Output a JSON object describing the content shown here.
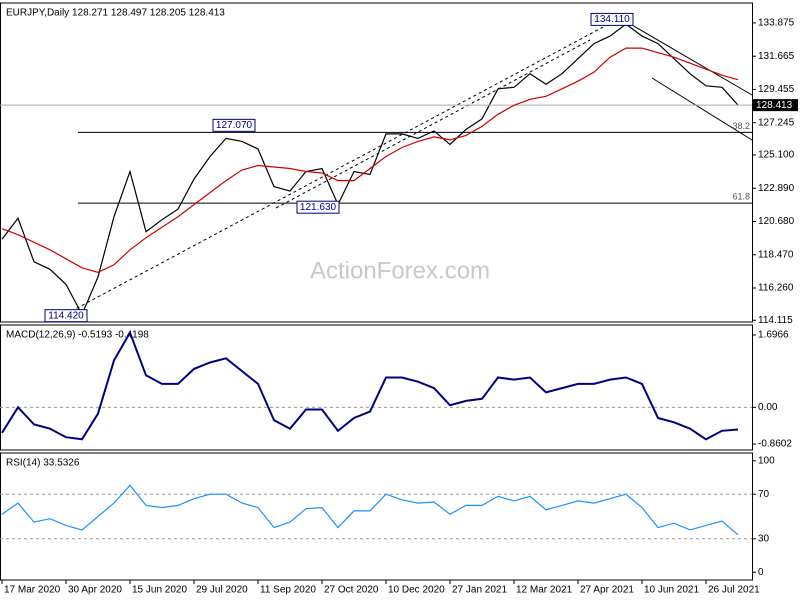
{
  "chart_data": [
    {
      "type": "line",
      "title": "EURJPY,Daily  128.271 128.497 128.205 128.413",
      "watermark": "ActionForex.com",
      "x": [
        0,
        8,
        16,
        24,
        32,
        40,
        48,
        56,
        64,
        72,
        80,
        88,
        96,
        104,
        112,
        120,
        128,
        136,
        144,
        152,
        160,
        168,
        176,
        184,
        192,
        200,
        208,
        216,
        224,
        232,
        240,
        248,
        256,
        264,
        272,
        280,
        288,
        296,
        304,
        312,
        320,
        328,
        336,
        344,
        352,
        360,
        368
      ],
      "series": [
        {
          "color": "#000000",
          "values": [
            119.5,
            120.9,
            118,
            117.5,
            116.5,
            114.5,
            117,
            121,
            124,
            120,
            120.8,
            121.5,
            123.5,
            125,
            126.2,
            126,
            125.5,
            123,
            122.7,
            124,
            124.2,
            121.8,
            124,
            123.8,
            126.5,
            126.5,
            126.2,
            126.7,
            125.8,
            126.8,
            127.5,
            129.5,
            129.6,
            130.5,
            129.8,
            130.5,
            131.5,
            132.5,
            133,
            133.8,
            133,
            132.5,
            131.5,
            130.5,
            129.7,
            129.6,
            128.413
          ]
        },
        {
          "color": "#d00000",
          "values": [
            120.2,
            119.8,
            119.3,
            118.8,
            118.2,
            117.6,
            117.3,
            117.8,
            118.8,
            119.6,
            120.3,
            121,
            121.8,
            122.6,
            123.4,
            124.1,
            124.4,
            124.3,
            124.2,
            124,
            123.9,
            123.4,
            123.4,
            124.2,
            125,
            125.6,
            126,
            126.3,
            126.1,
            126.4,
            127,
            127.8,
            128.4,
            128.8,
            129,
            129.5,
            130,
            130.6,
            131.6,
            132.2,
            132.2,
            131.9,
            131.6,
            131.2,
            130.8,
            130.4,
            130.1
          ]
        }
      ],
      "xlim": [
        -1,
        375
      ],
      "ylim": [
        114.0,
        135.2
      ],
      "yticks": [
        133.875,
        131.665,
        129.455,
        127.245,
        {
          "value": 125.1,
          "label": "125.100"
        },
        {
          "value": 122.89,
          "label": "122.890"
        },
        {
          "value": 120.68,
          "label": "120.680"
        },
        {
          "value": 118.47,
          "label": "118.470"
        },
        {
          "value": 116.26,
          "label": "116.260"
        },
        114.115
      ],
      "annotations": [
        {
          "label": "134.110",
          "value": 134.11,
          "x": 305
        },
        {
          "label": "127.070",
          "value": 127.07,
          "x": 116
        },
        {
          "label": "121.630",
          "value": 121.63,
          "x": 158
        },
        {
          "label": "114.420",
          "value": 114.42,
          "x": 32
        }
      ],
      "levels": [
        {
          "label": "38.2",
          "value": 126.6
        },
        {
          "label": "61.8",
          "value": 121.9
        }
      ]
    },
    {
      "type": "line",
      "title": "MACD(12,26,9) -0.5193 -0.4198",
      "x": [
        0,
        8,
        16,
        24,
        32,
        40,
        48,
        56,
        64,
        72,
        80,
        88,
        96,
        104,
        112,
        120,
        128,
        136,
        144,
        152,
        160,
        168,
        176,
        184,
        192,
        200,
        208,
        216,
        224,
        232,
        240,
        248,
        256,
        264,
        272,
        280,
        288,
        296,
        304,
        312,
        320,
        328,
        336,
        344,
        352,
        360,
        368
      ],
      "series": [
        {
          "color": "#000080",
          "values": [
            -0.6,
            0,
            -0.4,
            -0.5,
            -0.7,
            -0.75,
            -0.15,
            1.1,
            1.75,
            0.75,
            0.55,
            0.55,
            0.9,
            1.05,
            1.15,
            0.85,
            0.55,
            -0.3,
            -0.5,
            -0.05,
            -0.05,
            -0.55,
            -0.25,
            -0.1,
            0.7,
            0.7,
            0.6,
            0.45,
            0.05,
            0.15,
            0.2,
            0.7,
            0.65,
            0.7,
            0.35,
            0.45,
            0.55,
            0.55,
            0.65,
            0.7,
            0.55,
            -0.25,
            -0.35,
            -0.5,
            -0.75,
            -0.55,
            -0.5193
          ]
        }
      ],
      "xlim": [
        -1,
        375
      ],
      "ylim": [
        -1.0,
        1.93
      ],
      "yticks": [
        1.6966,
        {
          "value": 0,
          "label": "0.00"
        },
        -0.8602
      ]
    },
    {
      "type": "line",
      "title": "RSI(14) 33.5326",
      "x": [
        0,
        8,
        16,
        24,
        32,
        40,
        48,
        56,
        64,
        72,
        80,
        88,
        96,
        104,
        112,
        120,
        128,
        136,
        144,
        152,
        160,
        168,
        176,
        184,
        192,
        200,
        208,
        216,
        224,
        232,
        240,
        248,
        256,
        264,
        272,
        280,
        288,
        296,
        304,
        312,
        320,
        328,
        336,
        344,
        352,
        360,
        368
      ],
      "series": [
        {
          "color": "#1e90ff",
          "values": [
            52,
            62,
            45,
            48,
            42,
            38,
            50,
            62,
            78,
            60,
            58,
            60,
            66,
            70,
            70,
            62,
            58,
            40,
            45,
            57,
            58,
            40,
            55,
            55,
            70,
            65,
            62,
            63,
            52,
            60,
            60,
            68,
            64,
            68,
            56,
            60,
            64,
            62,
            66,
            70,
            58,
            40,
            44,
            38,
            42,
            46,
            33.5326
          ]
        }
      ],
      "xlim": [
        -1,
        375
      ],
      "ylim": [
        -7,
        107
      ],
      "yticks": [
        100,
        70,
        30,
        0
      ],
      "xticks": [
        {
          "value": 0,
          "label": "17 Mar 2020"
        },
        {
          "value": 32,
          "label": "30 Apr 2020"
        },
        {
          "value": 64,
          "label": "15 Jun 2020"
        },
        {
          "value": 96,
          "label": "29 Jul 2020"
        },
        {
          "value": 128,
          "label": "11 Sep 2020"
        },
        {
          "value": 160,
          "label": "27 Oct 2020"
        },
        {
          "value": 192,
          "label": "10 Dec 2020"
        },
        {
          "value": 224,
          "label": "27 Jan 2021"
        },
        {
          "value": 256,
          "label": "12 Mar 2021"
        },
        {
          "value": 288,
          "label": "27 Apr 2021"
        },
        {
          "value": 320,
          "label": "10 Jun 2021"
        },
        {
          "value": 352,
          "label": "26 Jul 2021"
        }
      ]
    }
  ]
}
